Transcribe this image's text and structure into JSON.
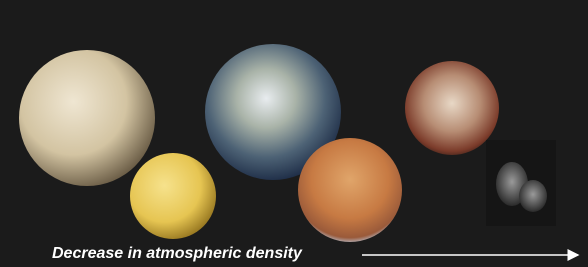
{
  "caption": "Decrease in atmospheric density"
}
